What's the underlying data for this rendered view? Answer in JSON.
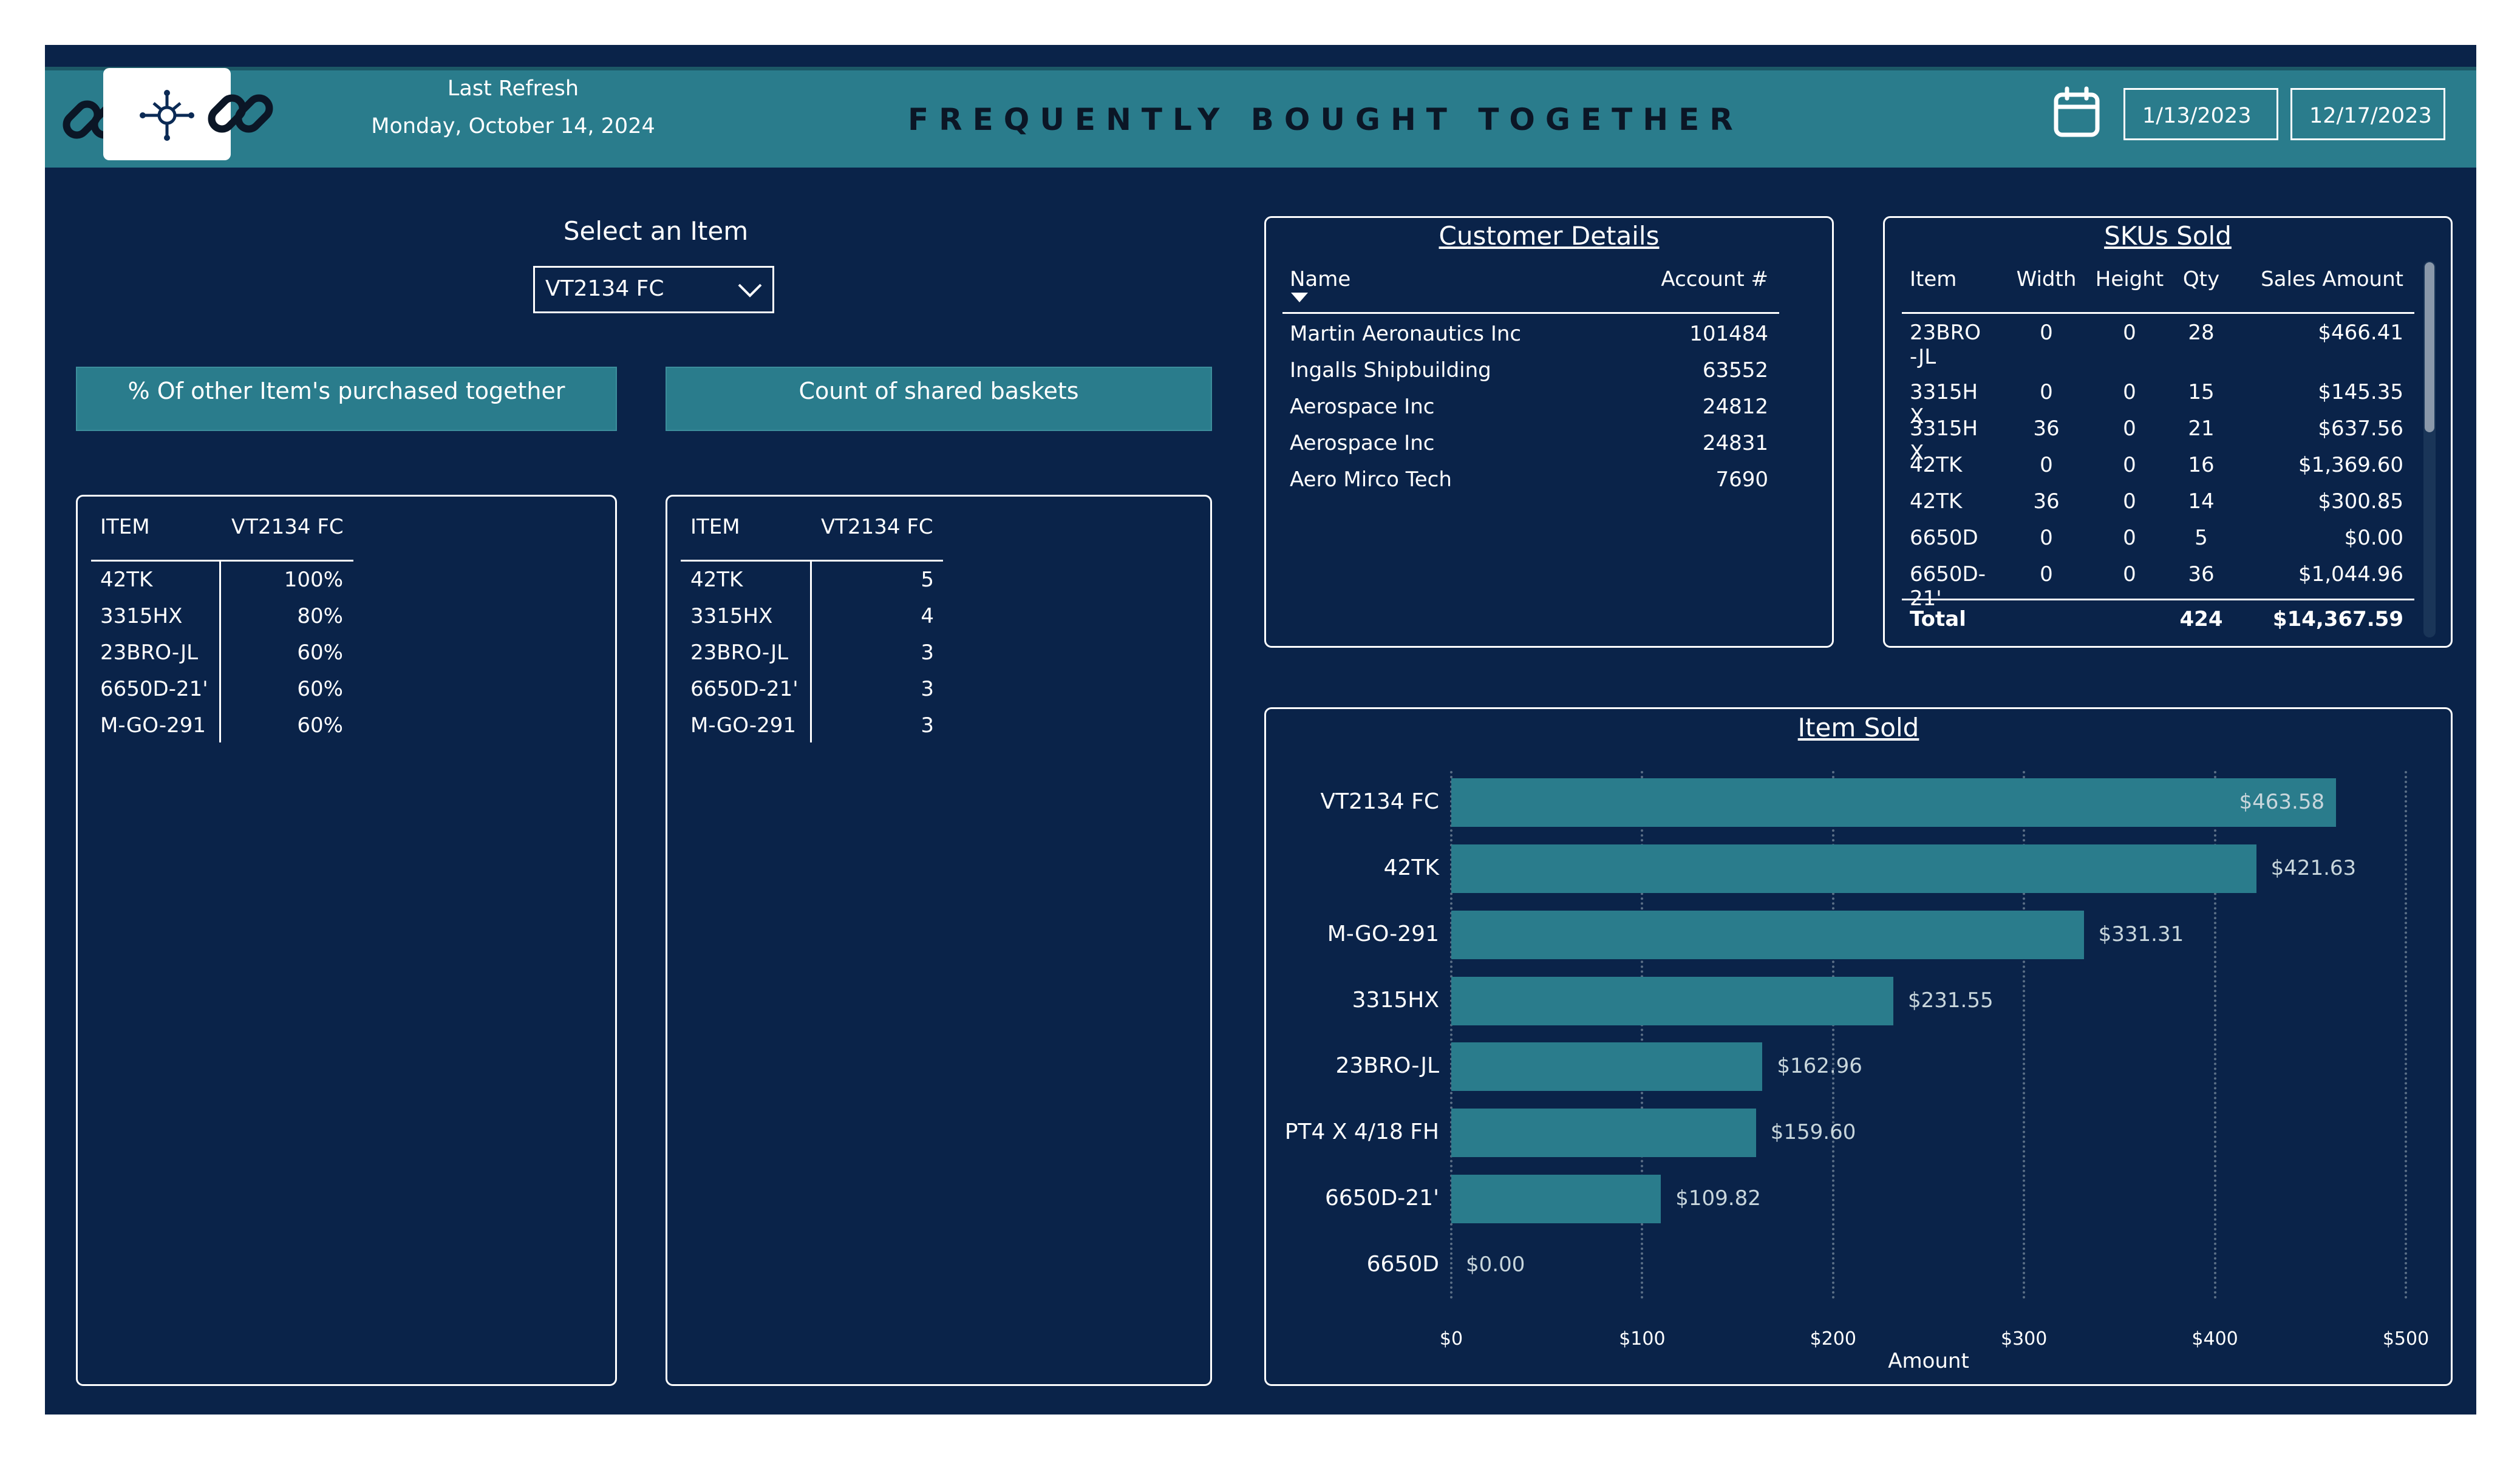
{
  "header": {
    "title": "FREQUENTLY BOUGHT TOGETHER",
    "refresh_label": "Last Refresh",
    "refresh_date": "Monday, October 14, 2024",
    "date_start": "1/13/2023",
    "date_end": "12/17/2023",
    "icons": [
      "link-icon",
      "network-hub-icon",
      "calendar-icon"
    ]
  },
  "filter": {
    "label": "Select an Item",
    "selected": "VT2134 FC"
  },
  "buttons": {
    "pct_label": "% Of other Item's purchased together",
    "count_label": "Count of shared baskets"
  },
  "pct_table": {
    "headers": [
      "ITEM",
      "VT2134 FC"
    ],
    "rows": [
      [
        "42TK",
        "100%"
      ],
      [
        "3315HX",
        "80%"
      ],
      [
        "23BRO-JL",
        "60%"
      ],
      [
        "6650D-21'",
        "60%"
      ],
      [
        "M-GO-291",
        "60%"
      ]
    ]
  },
  "count_table": {
    "headers": [
      "ITEM",
      "VT2134 FC"
    ],
    "rows": [
      [
        "42TK",
        "5"
      ],
      [
        "3315HX",
        "4"
      ],
      [
        "23BRO-JL",
        "3"
      ],
      [
        "6650D-21'",
        "3"
      ],
      [
        "M-GO-291",
        "3"
      ]
    ]
  },
  "customers": {
    "title": "Customer Details",
    "headers": [
      "Name",
      "Account #"
    ],
    "rows": [
      [
        "Martin Aeronautics Inc",
        "101484"
      ],
      [
        "Ingalls Shipbuilding",
        "63552"
      ],
      [
        "Aerospace Inc",
        "24812"
      ],
      [
        "Aerospace Inc",
        "24831"
      ],
      [
        "Aero Mirco Tech",
        "7690"
      ]
    ]
  },
  "skus": {
    "title": "SKUs Sold",
    "headers": [
      "Item",
      "Width",
      "Height",
      "Qty",
      "Sales Amount"
    ],
    "rows": [
      [
        "23BRO-JL",
        "0",
        "0",
        "28",
        "$466.41"
      ],
      [
        "3315HX",
        "0",
        "0",
        "15",
        "$145.35"
      ],
      [
        "3315HX",
        "36",
        "0",
        "21",
        "$637.56"
      ],
      [
        "42TK",
        "0",
        "0",
        "16",
        "$1,369.60"
      ],
      [
        "42TK",
        "36",
        "0",
        "14",
        "$300.85"
      ],
      [
        "6650D",
        "0",
        "0",
        "5",
        "$0.00"
      ],
      [
        "6650D-21'",
        "0",
        "0",
        "36",
        "$1,044.96"
      ]
    ],
    "total": [
      "Total",
      "",
      "",
      "424",
      "$14,367.59"
    ]
  },
  "chart_data": {
    "type": "bar",
    "orientation": "horizontal",
    "title": "Item Sold",
    "xlabel": "Amount",
    "categories": [
      "VT2134 FC",
      "42TK",
      "M-GO-291",
      "3315HX",
      "23BRO-JL",
      "PT4 X 4/18 FH",
      "6650D-21'",
      "6650D"
    ],
    "values": [
      463.58,
      421.63,
      331.31,
      231.55,
      162.96,
      159.6,
      109.82,
      0.0
    ],
    "value_labels": [
      "$463.58",
      "$421.63",
      "$331.31",
      "$231.55",
      "$162.96",
      "$159.60",
      "$109.82",
      "$0.00"
    ],
    "xticks": [
      "$0",
      "$100",
      "$200",
      "$300",
      "$400",
      "$500"
    ],
    "xlim": [
      0,
      500
    ],
    "grid": true,
    "bar_color": "#2a7c8c"
  },
  "colors": {
    "background": "#0a2349",
    "accent": "#2a7c8c"
  }
}
